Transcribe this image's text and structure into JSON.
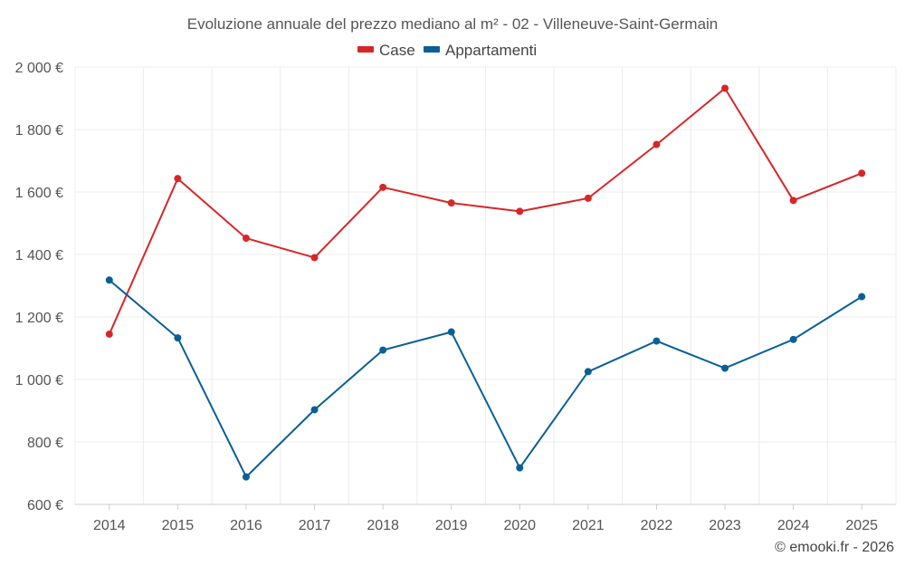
{
  "chart_data": {
    "type": "line",
    "title": "Evoluzione annuale del prezzo mediano al m² - 02 - Villeneuve-Saint-Germain",
    "categories": [
      "2014",
      "2015",
      "2016",
      "2017",
      "2018",
      "2019",
      "2020",
      "2021",
      "2022",
      "2023",
      "2024",
      "2025"
    ],
    "series": [
      {
        "name": "Case",
        "color": "#d62728",
        "values": [
          1145,
          1643,
          1452,
          1390,
          1615,
          1565,
          1538,
          1580,
          1752,
          1932,
          1573,
          1660
        ]
      },
      {
        "name": "Appartamenti",
        "color": "#0a5f96",
        "values": [
          1318,
          1133,
          688,
          903,
          1094,
          1152,
          717,
          1025,
          1123,
          1036,
          1128,
          1265
        ]
      }
    ],
    "ylim": [
      600,
      2000
    ],
    "yticks": [
      600,
      800,
      1000,
      1200,
      1400,
      1600,
      1800,
      2000
    ],
    "ytick_labels": [
      "600 €",
      "800 €",
      "1 000 €",
      "1 200 €",
      "1 400 €",
      "1 600 €",
      "1 800 €",
      "2 000 €"
    ],
    "legend_position": "top-center",
    "grid": true,
    "credit": "© emooki.fr - 2026"
  }
}
